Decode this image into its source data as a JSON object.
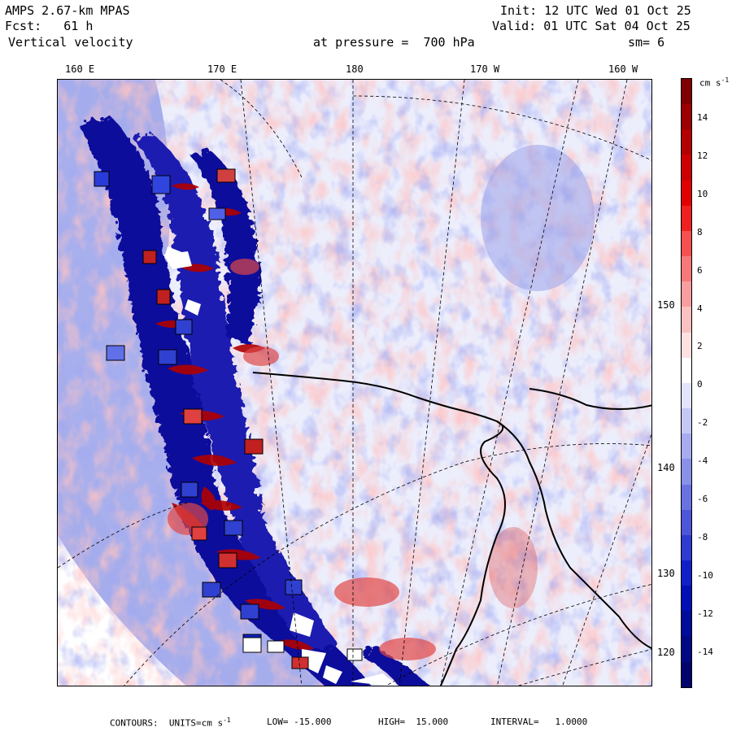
{
  "header": {
    "model": "AMPS 2.67-km MPAS",
    "forecast": "Fcst:   61 h",
    "field": "Vertical velocity",
    "init": "Init: 12 UTC Wed 01 Oct 25",
    "valid": "Valid: 01 UTC Sat 04 Oct 25",
    "level": "at pressure =  700 hPa",
    "smoothing": "sm= 6"
  },
  "longitude_labels": [
    "160 E",
    "170 E",
    "180",
    "170 W",
    "160 W"
  ],
  "latitude_labels": [
    "150 W",
    "140 W",
    "130 W",
    "120 W"
  ],
  "colorbar": {
    "units_label": "cm s",
    "units_sup": "-1",
    "ticks": [
      "14",
      "12",
      "10",
      "8",
      "6",
      "4",
      "2",
      "0",
      "-2",
      "-4",
      "-6",
      "-8",
      "-10",
      "-12",
      "-14"
    ],
    "colors": [
      "#7f0000",
      "#9b0000",
      "#b30000",
      "#cc0000",
      "#e00000",
      "#ef2020",
      "#f55050",
      "#f77878",
      "#f99e9e",
      "#fbc0c0",
      "#fde0e0",
      "#ffffff",
      "#e2e4fb",
      "#c4c8f5",
      "#a6acef",
      "#8890e8",
      "#6a72e0",
      "#4c56d8",
      "#2e3ad0",
      "#1020c8",
      "#0010b4",
      "#000c9c",
      "#000884",
      "#00046c"
    ]
  },
  "footer": {
    "contours": "CONTOURS:  UNITS=cm s",
    "units_sup": "-1",
    "low": "LOW= -15.000",
    "high": "HIGH=  15.000",
    "interval": "INTERVAL=   1.0000"
  },
  "map": {
    "background_color": "#e8eafc",
    "ridge_color": "#0a0aa0",
    "updraft_color": "#b00000"
  }
}
